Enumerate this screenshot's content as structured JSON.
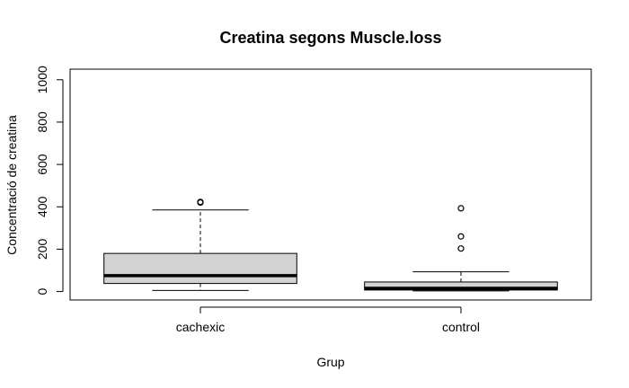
{
  "chart_data": {
    "type": "boxplot",
    "title": "Creatina segons Muscle.loss",
    "xlabel": "Grup",
    "ylabel": "Concentració de creatina",
    "categories": [
      "cachexic",
      "control"
    ],
    "ylim": [
      -40,
      1050
    ],
    "yticks": [
      0,
      200,
      400,
      600,
      800,
      1000
    ],
    "grid": false,
    "legend": "none",
    "box_fill": "#d3d3d3",
    "boxes": [
      {
        "category": "cachexic",
        "whisker_low": 5,
        "q1": 38,
        "median": 75,
        "q3": 180,
        "whisker_high": 385,
        "outliers": [
          420,
          423
        ]
      },
      {
        "category": "control",
        "whisker_low": 3,
        "q1": 7,
        "median": 15,
        "q3": 45,
        "whisker_high": 93,
        "outliers": [
          203,
          260,
          393
        ]
      }
    ]
  }
}
